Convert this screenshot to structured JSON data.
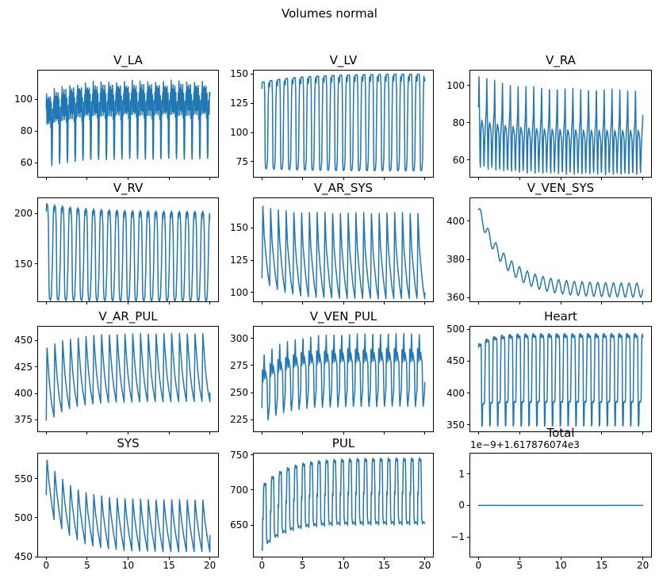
{
  "figure": {
    "suptitle": "Volumes normal",
    "line_color": "#1f77b4",
    "background": "#ffffff",
    "text_color": "#000000"
  },
  "chart_data": [
    {
      "type": "line",
      "title": "V_LA",
      "xlabel": "",
      "ylabel": "",
      "x_range": [
        0,
        20
      ],
      "xlim": [
        -1,
        21
      ],
      "ylim": [
        51,
        118
      ],
      "xticks": [
        0,
        5,
        10,
        15,
        20
      ],
      "xtick_labels_visible": false,
      "yticks": [
        60,
        80,
        100
      ],
      "period": 0.952,
      "env_top": {
        "start": 104,
        "end": 112,
        "tau": 2.5
      },
      "env_bottom": {
        "start": 56,
        "end": 62,
        "tau": 2.5
      },
      "shape": [
        [
          0,
          0.8
        ],
        [
          0.04,
          1.0
        ],
        [
          0.1,
          0.55
        ],
        [
          0.16,
          0.92
        ],
        [
          0.22,
          0.6
        ],
        [
          0.28,
          0.95
        ],
        [
          0.34,
          0.55
        ],
        [
          0.4,
          0.9
        ],
        [
          0.46,
          0.6
        ],
        [
          0.52,
          0.95
        ],
        [
          0.58,
          0.5
        ],
        [
          0.64,
          0.85
        ],
        [
          0.68,
          0.1
        ],
        [
          0.72,
          0.0
        ],
        [
          0.76,
          0.12
        ],
        [
          0.82,
          0.75
        ],
        [
          0.9,
          0.55
        ],
        [
          0.95,
          0.85
        ],
        [
          1,
          0.8
        ]
      ]
    },
    {
      "type": "line",
      "title": "V_LV",
      "xlabel": "",
      "ylabel": "",
      "x_range": [
        0,
        20
      ],
      "xlim": [
        -1,
        21
      ],
      "ylim": [
        62,
        153
      ],
      "xticks": [
        0,
        5,
        10,
        15,
        20
      ],
      "xtick_labels_visible": false,
      "yticks": [
        75,
        100,
        125,
        150
      ],
      "period": 0.952,
      "env_top": {
        "start": 143,
        "end": 150,
        "tau": 5
      },
      "env_bottom": {
        "start": 69,
        "end": 67,
        "tau": 5
      },
      "shape": [
        [
          0,
          0.93
        ],
        [
          0.04,
          1.0
        ],
        [
          0.3,
          1.0
        ],
        [
          0.36,
          0.85
        ],
        [
          0.42,
          0.1
        ],
        [
          0.46,
          0.01
        ],
        [
          0.56,
          0.0
        ],
        [
          0.64,
          0.02
        ],
        [
          0.72,
          0.12
        ],
        [
          0.82,
          0.8
        ],
        [
          0.88,
          0.98
        ],
        [
          1,
          0.93
        ]
      ]
    },
    {
      "type": "line",
      "title": "V_RA",
      "xlabel": "",
      "ylabel": "",
      "x_range": [
        0,
        20
      ],
      "xlim": [
        -1,
        21
      ],
      "ylim": [
        51,
        108
      ],
      "xticks": [
        0,
        5,
        10,
        15,
        20
      ],
      "xtick_labels_visible": false,
      "yticks": [
        60,
        80,
        100
      ],
      "period": 0.952,
      "env_top": {
        "start": 106,
        "end": 98,
        "tau": 4
      },
      "env_bottom": {
        "start": 56,
        "end": 52,
        "tau": 4
      },
      "shape": [
        [
          0,
          0.65
        ],
        [
          0.07,
          1.0
        ],
        [
          0.15,
          0.45
        ],
        [
          0.2,
          0.08
        ],
        [
          0.24,
          0.0
        ],
        [
          0.32,
          0.42
        ],
        [
          0.42,
          0.52
        ],
        [
          0.52,
          0.48
        ],
        [
          0.62,
          0.4
        ],
        [
          0.68,
          0.08
        ],
        [
          0.72,
          0.02
        ],
        [
          0.8,
          0.3
        ],
        [
          0.9,
          0.5
        ],
        [
          1,
          0.65
        ]
      ]
    },
    {
      "type": "line",
      "title": "V_RV",
      "xlabel": "",
      "ylabel": "",
      "x_range": [
        0,
        20
      ],
      "xlim": [
        -1,
        21
      ],
      "ylim": [
        113,
        215
      ],
      "xticks": [
        0,
        5,
        10,
        15,
        20
      ],
      "xtick_labels_visible": false,
      "yticks": [
        150,
        200
      ],
      "period": 0.952,
      "env_top": {
        "start": 210,
        "end": 202,
        "tau": 5
      },
      "env_bottom": {
        "start": 114,
        "end": 113,
        "tau": 5
      },
      "shape": [
        [
          0,
          0.92
        ],
        [
          0.07,
          1.0
        ],
        [
          0.2,
          0.97
        ],
        [
          0.28,
          0.8
        ],
        [
          0.36,
          0.12
        ],
        [
          0.42,
          0.02
        ],
        [
          0.55,
          0.0
        ],
        [
          0.66,
          0.05
        ],
        [
          0.78,
          0.35
        ],
        [
          0.88,
          0.8
        ],
        [
          0.95,
          0.98
        ],
        [
          1,
          0.92
        ]
      ]
    },
    {
      "type": "line",
      "title": "V_AR_SYS",
      "xlabel": "",
      "ylabel": "",
      "x_range": [
        0,
        20
      ],
      "xlim": [
        -1,
        21
      ],
      "ylim": [
        93,
        173
      ],
      "xticks": [
        0,
        5,
        10,
        15,
        20
      ],
      "xtick_labels_visible": false,
      "yticks": [
        100,
        125,
        150
      ],
      "period": 0.952,
      "env_top": {
        "start": 168,
        "end": 162,
        "tau": 2
      },
      "env_bottom": {
        "start": 110,
        "end": 95,
        "tau": 2.5
      },
      "shape": [
        [
          0,
          0.02
        ],
        [
          0.05,
          0.3
        ],
        [
          0.12,
          1.0
        ],
        [
          0.3,
          0.6
        ],
        [
          0.5,
          0.38
        ],
        [
          0.75,
          0.15
        ],
        [
          1,
          0.0
        ]
      ]
    },
    {
      "type": "line",
      "title": "V_VEN_SYS",
      "xlabel": "",
      "ylabel": "",
      "x_range": [
        0,
        20
      ],
      "xlim": [
        -1,
        21
      ],
      "ylim": [
        358,
        412
      ],
      "xticks": [
        0,
        5,
        10,
        15,
        20
      ],
      "xtick_labels_visible": false,
      "yticks": [
        360,
        380,
        400
      ],
      "period": 0.952,
      "env_top": {
        "start": 409,
        "end": 367.5,
        "tau": 3.2
      },
      "env_bottom": {
        "start": 403,
        "end": 360,
        "tau": 3.2
      },
      "shape": [
        [
          0,
          0.5
        ],
        [
          0.125,
          0.85
        ],
        [
          0.25,
          1.0
        ],
        [
          0.375,
          0.85
        ],
        [
          0.5,
          0.5
        ],
        [
          0.625,
          0.15
        ],
        [
          0.75,
          0.0
        ],
        [
          0.875,
          0.15
        ],
        [
          1,
          0.5
        ]
      ]
    },
    {
      "type": "line",
      "title": "V_AR_PUL",
      "xlabel": "",
      "ylabel": "",
      "x_range": [
        0,
        20
      ],
      "xlim": [
        -1,
        21
      ],
      "ylim": [
        364,
        463
      ],
      "xticks": [
        0,
        5,
        10,
        15,
        20
      ],
      "xtick_labels_visible": false,
      "yticks": [
        375,
        400,
        425,
        450
      ],
      "period": 0.952,
      "env_top": {
        "start": 443,
        "end": 457,
        "tau": 3
      },
      "env_bottom": {
        "start": 371,
        "end": 392,
        "tau": 2.5
      },
      "shape": [
        [
          0,
          0.05
        ],
        [
          0.1,
          1.0
        ],
        [
          0.25,
          0.75
        ],
        [
          0.45,
          0.45
        ],
        [
          0.7,
          0.2
        ],
        [
          1,
          0.0
        ]
      ]
    },
    {
      "type": "line",
      "title": "V_VEN_PUL",
      "xlabel": "",
      "ylabel": "",
      "x_range": [
        0,
        20
      ],
      "xlim": [
        -1,
        21
      ],
      "ylim": [
        214,
        311
      ],
      "xticks": [
        0,
        5,
        10,
        15,
        20
      ],
      "xtick_labels_visible": false,
      "yticks": [
        225,
        250,
        275,
        300
      ],
      "period": 0.952,
      "env_top": {
        "start": 284,
        "end": 305,
        "tau": 3
      },
      "env_bottom": {
        "start": 220,
        "end": 237,
        "tau": 2.5
      },
      "shape": [
        [
          0,
          0.25
        ],
        [
          0.06,
          0.8
        ],
        [
          0.12,
          0.6
        ],
        [
          0.2,
          0.68
        ],
        [
          0.3,
          1.0
        ],
        [
          0.38,
          0.62
        ],
        [
          0.46,
          0.74
        ],
        [
          0.56,
          0.66
        ],
        [
          0.66,
          0.6
        ],
        [
          0.74,
          0.12
        ],
        [
          0.8,
          0.0
        ],
        [
          0.9,
          0.12
        ],
        [
          1,
          0.25
        ]
      ]
    },
    {
      "type": "line",
      "title": "Heart",
      "xlabel": "",
      "ylabel": "",
      "x_range": [
        0,
        20
      ],
      "xlim": [
        -1,
        21
      ],
      "ylim": [
        340,
        504
      ],
      "xticks": [
        0,
        5,
        10,
        15,
        20
      ],
      "xtick_labels_visible": false,
      "yticks": [
        350,
        400,
        450,
        500
      ],
      "period": 0.952,
      "env_top": {
        "start": 477,
        "end": 493,
        "tau": 1.5
      },
      "env_bottom": {
        "start": 348,
        "end": 348,
        "tau": null
      },
      "shape": [
        [
          0,
          0.96
        ],
        [
          0.06,
          1.0
        ],
        [
          0.2,
          0.96
        ],
        [
          0.3,
          0.98
        ],
        [
          0.36,
          0.92
        ],
        [
          0.4,
          0.3
        ],
        [
          0.44,
          0.0
        ],
        [
          0.5,
          0.02
        ],
        [
          0.54,
          0.25
        ],
        [
          0.62,
          0.27
        ],
        [
          0.72,
          0.26
        ],
        [
          0.78,
          0.28
        ],
        [
          0.82,
          0.55
        ],
        [
          0.88,
          0.97
        ],
        [
          0.94,
          1.0
        ],
        [
          1,
          0.96
        ]
      ]
    },
    {
      "type": "line",
      "title": "SYS",
      "xlabel": "",
      "ylabel": "",
      "x_range": [
        0,
        20
      ],
      "xlim": [
        -1,
        21
      ],
      "ylim": [
        450,
        582
      ],
      "xticks": [
        0,
        5,
        10,
        15,
        20
      ],
      "xtick_labels_visible": true,
      "yticks": [
        450,
        500,
        550
      ],
      "period": 0.952,
      "env_top": {
        "start": 576,
        "end": 523,
        "tau": 2.8
      },
      "env_bottom": {
        "start": 514,
        "end": 456,
        "tau": 2.8
      },
      "shape": [
        [
          0,
          0.25
        ],
        [
          0.1,
          1.0
        ],
        [
          0.35,
          0.62
        ],
        [
          0.65,
          0.3
        ],
        [
          1,
          0.0
        ]
      ]
    },
    {
      "type": "line",
      "title": "PUL",
      "xlabel": "",
      "ylabel": "",
      "x_range": [
        0,
        20
      ],
      "xlim": [
        -1,
        21
      ],
      "ylim": [
        605,
        752
      ],
      "xticks": [
        0,
        5,
        10,
        15,
        20
      ],
      "xtick_labels_visible": true,
      "yticks": [
        650,
        700,
        750
      ],
      "period": 0.952,
      "env_top": {
        "start": 706,
        "end": 746,
        "tau": 3
      },
      "env_bottom": {
        "start": 613,
        "end": 650,
        "tau": 2.5
      },
      "shape": [
        [
          0,
          0.03
        ],
        [
          0.06,
          0.0
        ],
        [
          0.1,
          0.5
        ],
        [
          0.16,
          0.45
        ],
        [
          0.22,
          0.93
        ],
        [
          0.3,
          1.0
        ],
        [
          0.42,
          0.95
        ],
        [
          0.5,
          0.98
        ],
        [
          0.56,
          0.6
        ],
        [
          0.6,
          0.12
        ],
        [
          0.7,
          0.02
        ],
        [
          0.85,
          0.05
        ],
        [
          1,
          0.03
        ]
      ]
    },
    {
      "type": "line",
      "title": "Total",
      "xlabel": "",
      "ylabel": "",
      "x_range": [
        0,
        20
      ],
      "xlim": [
        -1,
        21
      ],
      "ylim": [
        -1.62,
        1.64
      ],
      "xticks": [
        0,
        5,
        10,
        15,
        20
      ],
      "xtick_labels_visible": true,
      "yticks": [
        -1,
        0,
        1
      ],
      "period": 0.952,
      "offset_text": "1e−9+1.617876074e3",
      "env_top": {
        "start": 0,
        "end": 0,
        "tau": null
      },
      "env_bottom": {
        "start": 0,
        "end": 0,
        "tau": null
      },
      "shape": [
        [
          0,
          0.5
        ],
        [
          1,
          0.5
        ]
      ]
    }
  ]
}
